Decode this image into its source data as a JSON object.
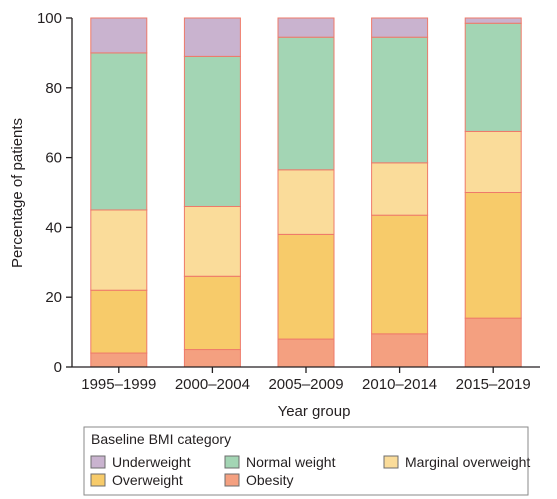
{
  "chart_data": {
    "type": "bar",
    "stacked": true,
    "xlabel": "Year group",
    "ylabel": "Percentage of patients",
    "ylim": [
      0,
      100
    ],
    "yticks": [
      0,
      20,
      40,
      60,
      80,
      100
    ],
    "grid": false,
    "categories": [
      "1995–1999",
      "2000–2004",
      "2005–2009",
      "2010–2014",
      "2015–2019"
    ],
    "series": [
      {
        "name": "Obesity",
        "color": "#f4a080",
        "values": [
          4,
          5,
          8,
          9.5,
          14
        ]
      },
      {
        "name": "Overweight",
        "color": "#f7cb6a",
        "values": [
          18,
          21,
          30,
          34,
          36
        ]
      },
      {
        "name": "Marginal overweight",
        "color": "#fadc9a",
        "values": [
          23,
          20,
          18.5,
          15,
          17.5
        ]
      },
      {
        "name": "Normal weight",
        "color": "#a3d5b4",
        "values": [
          45,
          43,
          38,
          36,
          31
        ]
      },
      {
        "name": "Underweight",
        "color": "#c9b3cf",
        "values": [
          10,
          11,
          5.5,
          5.5,
          1.5
        ]
      }
    ],
    "legend": {
      "title": "Baseline BMI category",
      "placement": "bottom",
      "order": [
        "Underweight",
        "Normal weight",
        "Marginal overweight",
        "Overweight",
        "Obesity"
      ]
    }
  },
  "colors": {
    "bar_stroke": "#ee7a6a",
    "axis": "#231f20",
    "legend_border": "#8a8a8a"
  }
}
